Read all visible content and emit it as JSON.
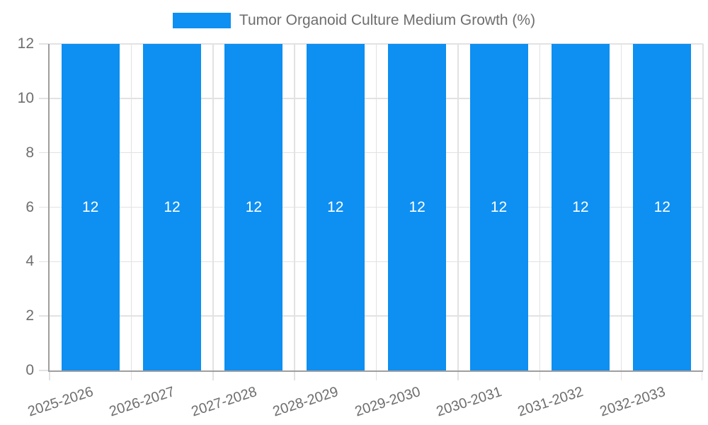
{
  "chart_data": {
    "type": "bar",
    "title": "",
    "legend": {
      "label": "Tumor Organoid Culture Medium Growth (%)",
      "position": "top"
    },
    "categories": [
      "2025-2026",
      "2026-2027",
      "2027-2028",
      "2028-2029",
      "2029-2030",
      "2030-2031",
      "2031-2032",
      "2032-2033"
    ],
    "series": [
      {
        "name": "Tumor Organoid Culture Medium Growth (%)",
        "values": [
          12,
          12,
          12,
          12,
          12,
          12,
          12,
          12
        ]
      }
    ],
    "bar_value_labels": [
      "12",
      "12",
      "12",
      "12",
      "12",
      "12",
      "12",
      "12"
    ],
    "xlabel": "",
    "ylabel": "",
    "ylim": [
      0,
      12
    ],
    "yticks": [
      0,
      2,
      4,
      6,
      8,
      10,
      12
    ],
    "grid": true,
    "x_label_rotation_deg": -18,
    "colors": {
      "bar": "#0e8ff2",
      "grid": "#e2e2e2",
      "axis": "#9e9e9e",
      "tick_text": "#6e6e6e",
      "bar_label": "#ffffff",
      "background": "#ffffff"
    }
  }
}
